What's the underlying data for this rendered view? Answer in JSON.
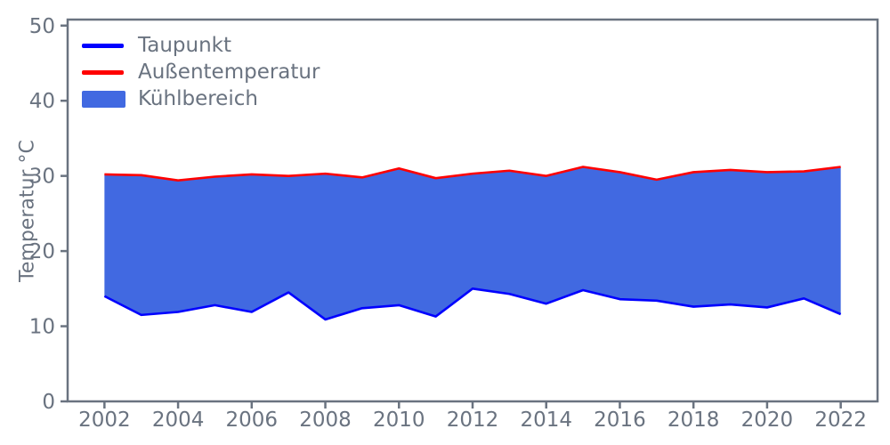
{
  "chart_data": {
    "type": "area",
    "title": "",
    "xlabel": "",
    "ylabel": "Temperatur °C",
    "grid": false,
    "legend_position": "upper-left",
    "axis_color": "#6a7380",
    "background_color": "#ffffff",
    "xlim": [
      2001,
      2023
    ],
    "ylim": [
      0,
      50.8
    ],
    "x_ticks": [
      2002,
      2004,
      2006,
      2008,
      2010,
      2012,
      2014,
      2016,
      2018,
      2020,
      2022
    ],
    "y_ticks": [
      0,
      10,
      20,
      30,
      40,
      50
    ],
    "x": [
      2002,
      2003,
      2004,
      2005,
      2006,
      2007,
      2008,
      2009,
      2010,
      2011,
      2012,
      2013,
      2014,
      2015,
      2016,
      2017,
      2018,
      2019,
      2020,
      2021,
      2022
    ],
    "series": [
      {
        "name": "Taupunkt",
        "color": "#0000ff",
        "values": [
          14.0,
          11.5,
          11.9,
          12.8,
          11.9,
          14.5,
          10.9,
          12.4,
          12.8,
          11.3,
          15.0,
          14.3,
          13.0,
          14.8,
          13.6,
          13.4,
          12.6,
          12.9,
          12.5,
          13.7,
          11.6
        ]
      },
      {
        "name": "Außentemperatur",
        "color": "#ff0000",
        "values": [
          30.2,
          30.1,
          29.4,
          29.9,
          30.2,
          30.0,
          30.3,
          29.8,
          31.0,
          29.7,
          30.3,
          30.7,
          30.0,
          31.2,
          30.5,
          29.5,
          30.5,
          30.8,
          30.5,
          30.6,
          31.2
        ]
      }
    ],
    "area": {
      "label": "Kühlbereich",
      "color": "#4169e1",
      "between": [
        "Taupunkt",
        "Außentemperatur"
      ]
    }
  }
}
